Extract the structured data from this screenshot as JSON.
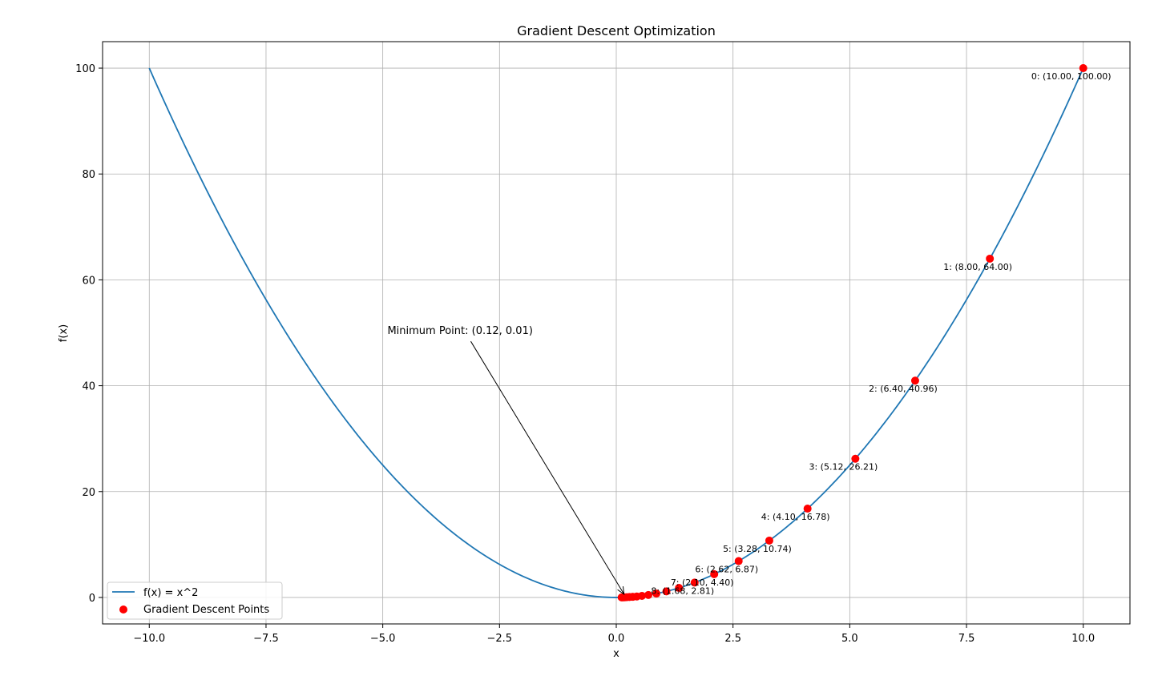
{
  "chart_data": {
    "type": "line",
    "title": "Gradient Descent Optimization",
    "xlabel": "x",
    "ylabel": "f(x)",
    "xlim": [
      -11,
      11
    ],
    "ylim": [
      -5,
      105
    ],
    "grid": true,
    "legend_placement": "lower-left",
    "x_ticks": [
      -10,
      -7.5,
      -5,
      -2.5,
      0,
      2.5,
      5,
      7.5,
      10
    ],
    "x_tick_labels": [
      "−10.0",
      "−7.5",
      "−5.0",
      "−2.5",
      "0.0",
      "2.5",
      "5.0",
      "7.5",
      "10.0"
    ],
    "y_ticks": [
      0,
      20,
      40,
      60,
      80,
      100
    ],
    "y_tick_labels": [
      "0",
      "20",
      "40",
      "60",
      "80",
      "100"
    ],
    "series": [
      {
        "name": "f(x) = x^2",
        "type": "line",
        "color": "#1f77b4",
        "function": "x^2",
        "x_range": [
          -10,
          10
        ]
      },
      {
        "name": "Gradient Descent Points",
        "type": "scatter",
        "color": "#ff0000",
        "points": [
          {
            "x": 10.0,
            "y": 100.0
          },
          {
            "x": 8.0,
            "y": 64.0
          },
          {
            "x": 6.4,
            "y": 40.96
          },
          {
            "x": 5.12,
            "y": 26.21
          },
          {
            "x": 4.096,
            "y": 16.78
          },
          {
            "x": 3.277,
            "y": 10.74
          },
          {
            "x": 2.621,
            "y": 6.87
          },
          {
            "x": 2.097,
            "y": 4.4
          },
          {
            "x": 1.678,
            "y": 2.81
          },
          {
            "x": 1.342,
            "y": 1.8
          },
          {
            "x": 1.074,
            "y": 1.15
          },
          {
            "x": 0.859,
            "y": 0.74
          },
          {
            "x": 0.687,
            "y": 0.47
          },
          {
            "x": 0.55,
            "y": 0.3
          },
          {
            "x": 0.44,
            "y": 0.19
          },
          {
            "x": 0.352,
            "y": 0.12
          },
          {
            "x": 0.281,
            "y": 0.08
          },
          {
            "x": 0.225,
            "y": 0.05
          },
          {
            "x": 0.18,
            "y": 0.03
          },
          {
            "x": 0.144,
            "y": 0.02
          },
          {
            "x": 0.115,
            "y": 0.01
          }
        ]
      }
    ],
    "point_labels": [
      "0: (10.00, 100.00)",
      "1: (8.00, 64.00)",
      "2: (6.40, 40.96)",
      "3: (5.12, 26.21)",
      "4: (4.10, 16.78)",
      "5: (3.28, 10.74)",
      "6: (2.62, 6.87)",
      "7: (2.10, 4.40)",
      "8: (1.68, 2.81)"
    ],
    "annotation": {
      "text": "Minimum Point: (0.12, 0.01)",
      "target": {
        "x": 0.115,
        "y": 0.01
      },
      "text_anchor": {
        "x": -4.9,
        "y": 50.5
      }
    },
    "legend": [
      {
        "label": "f(x) = x^2",
        "kind": "line",
        "color": "#1f77b4"
      },
      {
        "label": "Gradient Descent Points",
        "kind": "marker",
        "color": "#ff0000"
      }
    ]
  }
}
